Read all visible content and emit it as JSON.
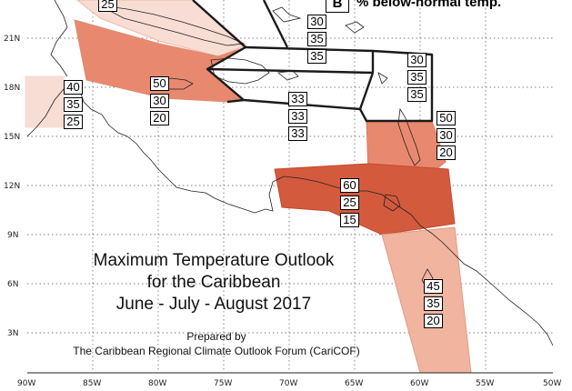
{
  "map": {
    "lat_labels": [
      "21N",
      "18N",
      "15N",
      "12N",
      "9N",
      "6N",
      "3N"
    ],
    "lon_labels": [
      "90W",
      "85W",
      "80W",
      "75W",
      "70W",
      "65W",
      "60W",
      "55W",
      "50W"
    ],
    "zone_colors": {
      "light": "#f8ddd4",
      "medium": "#e8896f",
      "mediumlight": "#f1b49f",
      "dark": "#d45a3d",
      "mid": "#e07a5d"
    }
  },
  "legend": {
    "letter": "B",
    "text": "% below-normal temp."
  },
  "zones": {
    "west_cuba": [
      "25"
    ],
    "north_bahamas": [
      "30",
      "35",
      "35"
    ],
    "leewards_n": [
      "30",
      "35",
      "35"
    ],
    "belize": [
      "40",
      "35",
      "25"
    ],
    "jamaica": [
      "50",
      "30",
      "20"
    ],
    "hispaniola_south": [
      "33",
      "33",
      "33"
    ],
    "windwards": [
      "50",
      "30",
      "20"
    ],
    "abc": [
      "60",
      "25",
      "15"
    ],
    "guianas": [
      "45",
      "35",
      "20"
    ]
  },
  "title": {
    "line1": "Maximum Temperature Outlook",
    "line2": "for the Caribbean",
    "line3": "June - July - August 2017"
  },
  "credit": {
    "line1": "Prepared by",
    "line2": "The Caribbean Regional Climate Outlook Forum (CariCOF)"
  }
}
